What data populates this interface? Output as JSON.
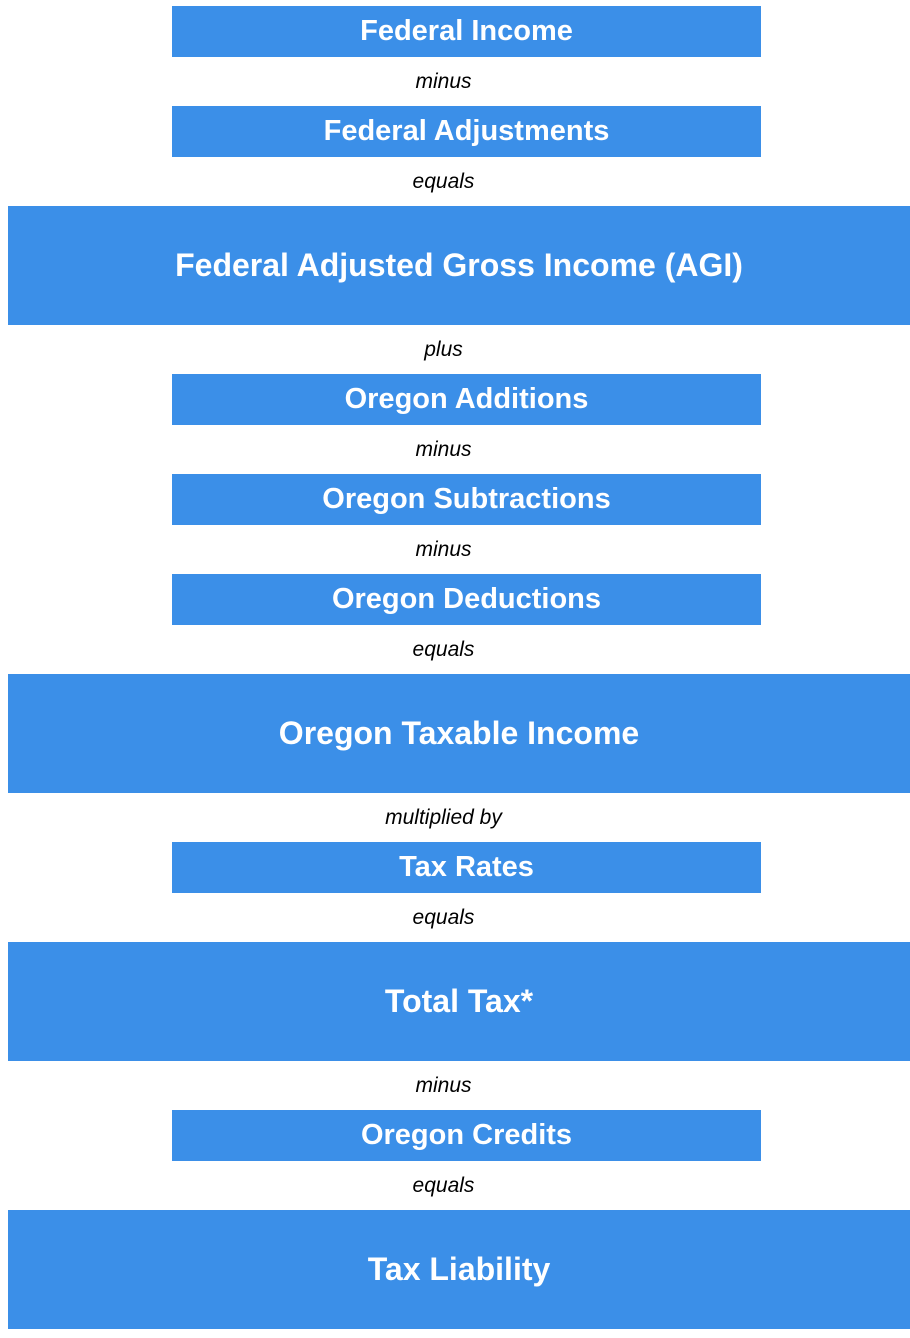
{
  "flow": [
    {
      "box": "Federal Income"
    },
    {
      "operator": "minus"
    },
    {
      "box": "Federal Adjustments"
    },
    {
      "operator": "equals"
    },
    {
      "box": "Federal Adjusted Gross Income (AGI)"
    },
    {
      "operator": "plus"
    },
    {
      "box": "Oregon Additions"
    },
    {
      "operator": "minus"
    },
    {
      "box": "Oregon Subtractions"
    },
    {
      "operator": "minus"
    },
    {
      "box": "Oregon Deductions"
    },
    {
      "operator": "equals"
    },
    {
      "box": "Oregon Taxable Income"
    },
    {
      "operator": "multiplied by"
    },
    {
      "box": "Tax Rates"
    },
    {
      "operator": "equals"
    },
    {
      "box": "Total Tax*"
    },
    {
      "operator": "minus"
    },
    {
      "box": "Oregon Credits"
    },
    {
      "operator": "equals"
    },
    {
      "box": "Tax Liability"
    }
  ]
}
